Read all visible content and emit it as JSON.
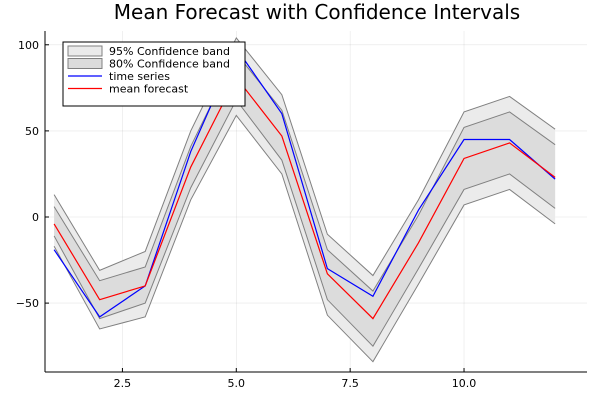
{
  "chart_data": {
    "type": "line",
    "title": "Mean Forecast with Confidence Intervals",
    "xlabel": "",
    "ylabel": "",
    "xlim": [
      0.8,
      12.7
    ],
    "ylim": [
      -90,
      108
    ],
    "xticks": [
      2.5,
      5.0,
      7.5,
      10.0
    ],
    "xtick_labels": [
      "2.5",
      "5.0",
      "7.5",
      "10.0"
    ],
    "yticks": [
      -50,
      0,
      50,
      100
    ],
    "ytick_labels": [
      "−50",
      "0",
      "50",
      "100"
    ],
    "grid": true,
    "legend_position": "top-left",
    "x": [
      1,
      2,
      3,
      4,
      5,
      6,
      7,
      8,
      9,
      10,
      11,
      12
    ],
    "bands": [
      {
        "name": "95% Confidence band",
        "color": "#ebebeb",
        "line_color": "#808080",
        "lower": [
          -17,
          -65,
          -58,
          10,
          59,
          25,
          -57,
          -84,
          -39,
          7,
          16,
          -4
        ],
        "upper": [
          13,
          -31,
          -20,
          50,
          104,
          71,
          -10,
          -34,
          10,
          61,
          70,
          51
        ]
      },
      {
        "name": "80% Confidence band",
        "color": "#dcdcdc",
        "line_color": "#808080",
        "lower": [
          -11,
          -59,
          -50,
          17,
          68,
          33,
          -48,
          -75,
          -30,
          16,
          25,
          5
        ],
        "upper": [
          6,
          -37,
          -29,
          41,
          95,
          62,
          -19,
          -43,
          1,
          52,
          61,
          42
        ]
      }
    ],
    "series": [
      {
        "name": "time series",
        "color": "#0000ff",
        "values": [
          -19,
          -58,
          -40,
          38,
          98,
          60,
          -30,
          -46,
          4,
          45,
          45,
          22
        ]
      },
      {
        "name": "mean forecast",
        "color": "#ff0000",
        "values": [
          -4,
          -48,
          -40,
          29,
          81,
          47,
          -33,
          -59,
          -15,
          34,
          43,
          23
        ]
      }
    ]
  }
}
